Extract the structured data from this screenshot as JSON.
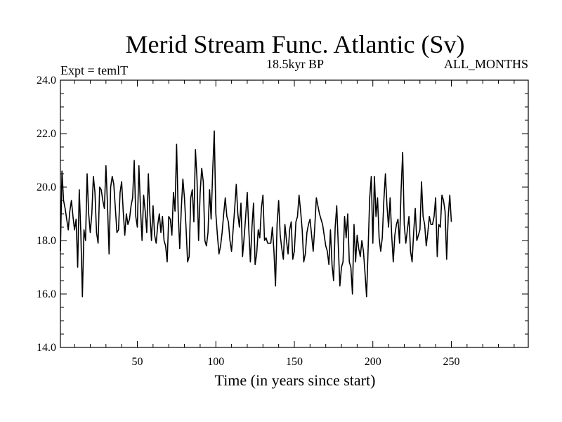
{
  "chart_data": {
    "type": "line",
    "title": "Merid Stream Func. Atlantic (Sv)",
    "subtitle_left": "Expt = temlT",
    "subtitle_center": "18.5kyr BP",
    "subtitle_right": "ALL_MONTHS",
    "xlabel": "Time (in years since start)",
    "ylabel": "",
    "xlim": [
      1,
      299
    ],
    "ylim": [
      14,
      24
    ],
    "x_ticks": [
      50,
      100,
      150,
      200,
      250
    ],
    "x_tick_labels": [
      "50",
      "100",
      "150",
      "200",
      "250"
    ],
    "y_ticks": [
      14,
      16,
      18,
      20,
      22,
      24
    ],
    "y_tick_labels": [
      "14.0",
      "16.0",
      "18.0",
      "20.0",
      "22.0",
      "24.0"
    ],
    "grid": false,
    "series": [
      {
        "name": "Merid Stream Func. Atlantic",
        "x_start": 1,
        "x_step": 1,
        "values": [
          17.6,
          20.6,
          19.5,
          19.2,
          18.8,
          18.4,
          19.1,
          19.5,
          18.9,
          18.4,
          18.8,
          17.0,
          19.9,
          18.3,
          15.9,
          18.4,
          18.0,
          20.5,
          19.0,
          18.3,
          19.0,
          20.4,
          19.8,
          18.3,
          17.9,
          20.0,
          19.9,
          19.5,
          19.2,
          20.8,
          19.3,
          17.5,
          20.0,
          20.4,
          20.1,
          19.2,
          18.3,
          18.4,
          19.8,
          20.2,
          19.1,
          18.2,
          19.0,
          18.6,
          18.8,
          19.3,
          19.6,
          21.0,
          18.9,
          18.5,
          20.8,
          19.2,
          18.0,
          19.7,
          19.1,
          18.3,
          20.5,
          19.0,
          18.0,
          19.3,
          18.2,
          17.9,
          18.6,
          19.0,
          18.3,
          18.9,
          18.0,
          17.8,
          17.2,
          18.9,
          18.8,
          18.2,
          19.8,
          19.1,
          21.6,
          19.1,
          17.7,
          19.2,
          20.3,
          19.6,
          18.5,
          17.2,
          17.4,
          19.6,
          19.9,
          18.7,
          21.4,
          20.3,
          18.0,
          19.8,
          20.7,
          20.2,
          18.0,
          17.8,
          18.3,
          19.9,
          18.8,
          20.6,
          22.1,
          19.0,
          18.2,
          17.5,
          17.8,
          18.3,
          19.0,
          19.6,
          18.9,
          18.7,
          18.0,
          17.6,
          18.4,
          19.2,
          20.1,
          19.0,
          18.5,
          19.4,
          17.4,
          18.1,
          18.9,
          19.8,
          18.4,
          17.2,
          18.5,
          19.4,
          17.1,
          17.5,
          18.4,
          18.1,
          19.2,
          19.7,
          18.0,
          18.1,
          17.9,
          17.9,
          17.9,
          18.5,
          17.6,
          16.3,
          18.6,
          19.5,
          18.2,
          17.7,
          17.3,
          18.6,
          18.0,
          17.5,
          18.4,
          18.7,
          17.3,
          17.6,
          18.7,
          18.9,
          19.7,
          19.1,
          18.4,
          17.2,
          17.5,
          18.3,
          18.6,
          18.8,
          18.2,
          17.6,
          18.5,
          19.6,
          19.3,
          19.0,
          18.8,
          18.6,
          18.2,
          17.8,
          17.6,
          17.1,
          18.4,
          17.1,
          16.5,
          18.5,
          19.3,
          17.8,
          16.3,
          17.0,
          17.2,
          18.9,
          18.1,
          19.0,
          17.2,
          17.0,
          16.0,
          18.6,
          17.2,
          18.2,
          17.7,
          17.4,
          18.0,
          17.6,
          16.8,
          15.9,
          17.7,
          19.6,
          20.4,
          17.9,
          20.4,
          18.9,
          19.6,
          18.1,
          17.6,
          18.1,
          19.5,
          20.5,
          19.3,
          18.5,
          19.6,
          18.2,
          17.2,
          18.2,
          18.6,
          18.8,
          17.9,
          19.9,
          21.3,
          18.6,
          17.9,
          18.4,
          18.9,
          17.6,
          17.2,
          18.3,
          19.2,
          18.0,
          18.2,
          18.4,
          20.2,
          18.9,
          18.6,
          17.8,
          18.3,
          18.9,
          18.6,
          18.6,
          18.9,
          19.6,
          17.4,
          18.6,
          18.5,
          19.7,
          19.5,
          19.1,
          17.3,
          18.9,
          19.7,
          18.7
        ]
      }
    ]
  }
}
